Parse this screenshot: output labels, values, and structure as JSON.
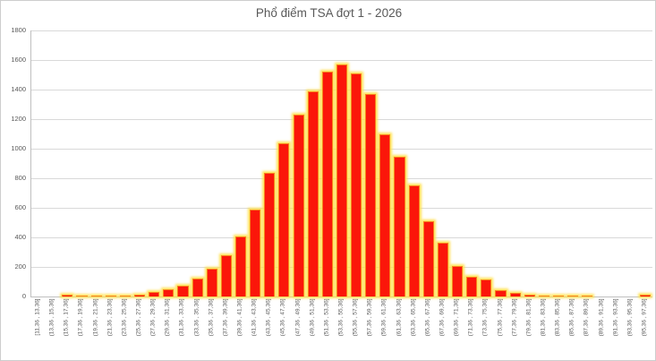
{
  "chart_data": {
    "type": "bar",
    "subtype": "histogram",
    "title": "Phổ điểm TSA đợt 1 - 2026",
    "xlabel": "",
    "ylabel": "",
    "ylim": [
      0,
      1800
    ],
    "ytick_step": 200,
    "y_ticks": [
      0,
      200,
      400,
      600,
      800,
      1000,
      1200,
      1400,
      1600,
      1800
    ],
    "grid": true,
    "legend": "none",
    "categories": [
      "[11,36 , 13,36]",
      "(13,36 , 15,36]",
      "(15,36 , 17,36]",
      "(17,36 , 19,36]",
      "(19,36 , 21,36]",
      "(21,36 , 23,36]",
      "(23,36 , 25,36]",
      "(25,36 , 27,36]",
      "(27,36 , 29,36]",
      "(29,36 , 31,36]",
      "(31,36 , 33,36]",
      "(33,36 , 35,36]",
      "(35,36 , 37,36]",
      "(37,36 , 39,36]",
      "(39,36 , 41,36]",
      "(41,36 , 43,36]",
      "(43,36 , 45,36]",
      "(45,36 , 47,36]",
      "(47,36 , 49,36]",
      "(49,36 , 51,36]",
      "(51,36 , 53,36]",
      "(53,36 , 55,36]",
      "(55,36 , 57,36]",
      "(57,36 , 59,36]",
      "(59,36 , 61,36]",
      "(61,36 , 63,36]",
      "(63,36 , 65,36]",
      "(65,36 , 67,36]",
      "(67,36 , 69,36]",
      "(69,36 , 71,36]",
      "(71,36 , 73,36]",
      "(73,36 , 75,36]",
      "(75,36 , 77,36]",
      "(77,36 , 79,36]",
      "(79,36 , 81,36]",
      "(81,36 , 83,36]",
      "(83,36 , 85,36]",
      "(85,36 , 87,36]",
      "(87,36 , 89,36]",
      "(89,36 , 91,36]",
      "(91,36 , 93,36]",
      "(93,36 , 95,36]",
      "(95,36 , 97,36]"
    ],
    "values": [
      0,
      0,
      10,
      3,
      5,
      5,
      8,
      12,
      30,
      48,
      75,
      122,
      185,
      278,
      405,
      585,
      835,
      1035,
      1228,
      1385,
      1522,
      1570,
      1510,
      1368,
      1097,
      945,
      752,
      510,
      362,
      205,
      135,
      115,
      45,
      22,
      14,
      8,
      5,
      4,
      3,
      0,
      0,
      0,
      10
    ],
    "colors": {
      "bar_fill": "#fb160a",
      "bar_border": "#f6821d",
      "bar_glow": "#ffe04a",
      "grid_color": "#d9d9d9",
      "axis_color": "#bfbfbf",
      "text_color": "#595959",
      "background": "#ffffff"
    }
  }
}
